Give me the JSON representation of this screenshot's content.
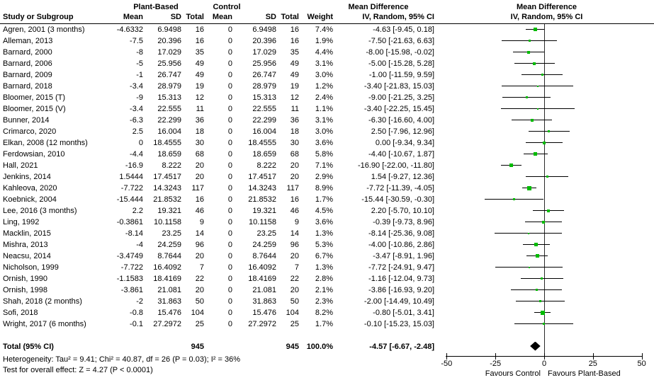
{
  "header": {
    "group_plant": "Plant-Based",
    "group_control": "Control",
    "study_col": "Study or Subgroup",
    "mean": "Mean",
    "sd": "SD",
    "total": "Total",
    "weight": "Weight",
    "md_title": "Mean Difference",
    "md_subtitle": "IV, Random, 95% CI"
  },
  "footer": {
    "heterogeneity": "Heterogeneity: Tau² = 9.41; Chi² = 40.87, df = 26 (P = 0.03); I² = 36%",
    "overall": "Test for overall effect: Z = 4.27 (P < 0.0001)"
  },
  "chart_data": {
    "type": "forest",
    "effect_label": "Mean Difference",
    "model_label": "IV, Random, 95% CI",
    "xlim": [
      -50,
      50
    ],
    "ticks": [
      -50,
      -25,
      0,
      25,
      50
    ],
    "xlabel_left": "Favours Control",
    "xlabel_right": "Favours Plant-Based",
    "marker_color": "#00bb00",
    "studies": [
      {
        "name": "Agren, 2001 (3 months)",
        "mean1": "-4.6332",
        "sd1": "6.9498",
        "n1": "16",
        "mean2": "0",
        "sd2": "6.9498",
        "n2": "16",
        "weight": "7.4%",
        "w": 7.4,
        "est": -4.63,
        "lo": -9.45,
        "hi": 0.18,
        "ci_text": "-4.63 [-9.45, 0.18]"
      },
      {
        "name": "Alleman, 2013",
        "mean1": "-7.5",
        "sd1": "20.396",
        "n1": "16",
        "mean2": "0",
        "sd2": "20.396",
        "n2": "16",
        "weight": "1.9%",
        "w": 1.9,
        "est": -7.5,
        "lo": -21.63,
        "hi": 6.63,
        "ci_text": "-7.50 [-21.63, 6.63]"
      },
      {
        "name": "Barnard, 2000",
        "mean1": "-8",
        "sd1": "17.029",
        "n1": "35",
        "mean2": "0",
        "sd2": "17.029",
        "n2": "35",
        "weight": "4.4%",
        "w": 4.4,
        "est": -8.0,
        "lo": -15.98,
        "hi": -0.02,
        "ci_text": "-8.00 [-15.98, -0.02]"
      },
      {
        "name": "Barnard, 2006",
        "mean1": "-5",
        "sd1": "25.956",
        "n1": "49",
        "mean2": "0",
        "sd2": "25.956",
        "n2": "49",
        "weight": "3.1%",
        "w": 3.1,
        "est": -5.0,
        "lo": -15.28,
        "hi": 5.28,
        "ci_text": "-5.00 [-15.28, 5.28]"
      },
      {
        "name": "Barnard, 2009",
        "mean1": "-1",
        "sd1": "26.747",
        "n1": "49",
        "mean2": "0",
        "sd2": "26.747",
        "n2": "49",
        "weight": "3.0%",
        "w": 3.0,
        "est": -1.0,
        "lo": -11.59,
        "hi": 9.59,
        "ci_text": "-1.00 [-11.59, 9.59]"
      },
      {
        "name": "Barnard, 2018",
        "mean1": "-3.4",
        "sd1": "28.979",
        "n1": "19",
        "mean2": "0",
        "sd2": "28.979",
        "n2": "19",
        "weight": "1.2%",
        "w": 1.2,
        "est": -3.4,
        "lo": -21.83,
        "hi": 15.03,
        "ci_text": "-3.40 [-21.83, 15.03]"
      },
      {
        "name": "Bloomer, 2015 (T)",
        "mean1": "-9",
        "sd1": "15.313",
        "n1": "12",
        "mean2": "0",
        "sd2": "15.313",
        "n2": "12",
        "weight": "2.4%",
        "w": 2.4,
        "est": -9.0,
        "lo": -21.25,
        "hi": 3.25,
        "ci_text": "-9.00 [-21.25, 3.25]"
      },
      {
        "name": "Bloomer, 2015 (V)",
        "mean1": "-3.4",
        "sd1": "22.555",
        "n1": "11",
        "mean2": "0",
        "sd2": "22.555",
        "n2": "11",
        "weight": "1.1%",
        "w": 1.1,
        "est": -3.4,
        "lo": -22.25,
        "hi": 15.45,
        "ci_text": "-3.40 [-22.25, 15.45]"
      },
      {
        "name": "Bunner, 2014",
        "mean1": "-6.3",
        "sd1": "22.299",
        "n1": "36",
        "mean2": "0",
        "sd2": "22.299",
        "n2": "36",
        "weight": "3.1%",
        "w": 3.1,
        "est": -6.3,
        "lo": -16.6,
        "hi": 4.0,
        "ci_text": "-6.30 [-16.60, 4.00]"
      },
      {
        "name": "Crimarco, 2020",
        "mean1": "2.5",
        "sd1": "16.004",
        "n1": "18",
        "mean2": "0",
        "sd2": "16.004",
        "n2": "18",
        "weight": "3.0%",
        "w": 3.0,
        "est": 2.5,
        "lo": -7.96,
        "hi": 12.96,
        "ci_text": "2.50 [-7.96, 12.96]"
      },
      {
        "name": "Elkan, 2008 (12 months)",
        "mean1": "0",
        "sd1": "18.4555",
        "n1": "30",
        "mean2": "0",
        "sd2": "18.4555",
        "n2": "30",
        "weight": "3.6%",
        "w": 3.6,
        "est": 0.0,
        "lo": -9.34,
        "hi": 9.34,
        "ci_text": "0.00 [-9.34, 9.34]"
      },
      {
        "name": "Ferdowsian, 2010",
        "mean1": "-4.4",
        "sd1": "18.659",
        "n1": "68",
        "mean2": "0",
        "sd2": "18.659",
        "n2": "68",
        "weight": "5.8%",
        "w": 5.8,
        "est": -4.4,
        "lo": -10.67,
        "hi": 1.87,
        "ci_text": "-4.40 [-10.67, 1.87]"
      },
      {
        "name": "Hall, 2021",
        "mean1": "-16.9",
        "sd1": "8.222",
        "n1": "20",
        "mean2": "0",
        "sd2": "8.222",
        "n2": "20",
        "weight": "7.1%",
        "w": 7.1,
        "est": -16.9,
        "lo": -22.0,
        "hi": -11.8,
        "ci_text": "-16.90 [-22.00, -11.80]"
      },
      {
        "name": "Jenkins, 2014",
        "mean1": "1.5444",
        "sd1": "17.4517",
        "n1": "20",
        "mean2": "0",
        "sd2": "17.4517",
        "n2": "20",
        "weight": "2.9%",
        "w": 2.9,
        "est": 1.54,
        "lo": -9.27,
        "hi": 12.36,
        "ci_text": "1.54 [-9.27, 12.36]"
      },
      {
        "name": "Kahleova, 2020",
        "mean1": "-7.722",
        "sd1": "14.3243",
        "n1": "117",
        "mean2": "0",
        "sd2": "14.3243",
        "n2": "117",
        "weight": "8.9%",
        "w": 8.9,
        "est": -7.72,
        "lo": -11.39,
        "hi": -4.05,
        "ci_text": "-7.72 [-11.39, -4.05]"
      },
      {
        "name": "Koebnick, 2004",
        "mean1": "-15.444",
        "sd1": "21.8532",
        "n1": "16",
        "mean2": "0",
        "sd2": "21.8532",
        "n2": "16",
        "weight": "1.7%",
        "w": 1.7,
        "est": -15.44,
        "lo": -30.59,
        "hi": -0.3,
        "ci_text": "-15.44 [-30.59, -0.30]"
      },
      {
        "name": "Lee, 2016 (3 months)",
        "mean1": "2.2",
        "sd1": "19.321",
        "n1": "46",
        "mean2": "0",
        "sd2": "19.321",
        "n2": "46",
        "weight": "4.5%",
        "w": 4.5,
        "est": 2.2,
        "lo": -5.7,
        "hi": 10.1,
        "ci_text": "2.20 [-5.70, 10.10]"
      },
      {
        "name": "Ling, 1992",
        "mean1": "-0.3861",
        "sd1": "10.1158",
        "n1": "9",
        "mean2": "0",
        "sd2": "10.1158",
        "n2": "9",
        "weight": "3.6%",
        "w": 3.6,
        "est": -0.39,
        "lo": -9.73,
        "hi": 8.96,
        "ci_text": "-0.39 [-9.73, 8.96]"
      },
      {
        "name": "Macklin, 2015",
        "mean1": "-8.14",
        "sd1": "23.25",
        "n1": "14",
        "mean2": "0",
        "sd2": "23.25",
        "n2": "14",
        "weight": "1.3%",
        "w": 1.3,
        "est": -8.14,
        "lo": -25.36,
        "hi": 9.08,
        "ci_text": "-8.14 [-25.36, 9.08]"
      },
      {
        "name": "Mishra, 2013",
        "mean1": "-4",
        "sd1": "24.259",
        "n1": "96",
        "mean2": "0",
        "sd2": "24.259",
        "n2": "96",
        "weight": "5.3%",
        "w": 5.3,
        "est": -4.0,
        "lo": -10.86,
        "hi": 2.86,
        "ci_text": "-4.00 [-10.86, 2.86]"
      },
      {
        "name": "Neacsu, 2014",
        "mean1": "-3.4749",
        "sd1": "8.7644",
        "n1": "20",
        "mean2": "0",
        "sd2": "8.7644",
        "n2": "20",
        "weight": "6.7%",
        "w": 6.7,
        "est": -3.47,
        "lo": -8.91,
        "hi": 1.96,
        "ci_text": "-3.47 [-8.91, 1.96]"
      },
      {
        "name": "Nicholson, 1999",
        "mean1": "-7.722",
        "sd1": "16.4092",
        "n1": "7",
        "mean2": "0",
        "sd2": "16.4092",
        "n2": "7",
        "weight": "1.3%",
        "w": 1.3,
        "est": -7.72,
        "lo": -24.91,
        "hi": 9.47,
        "ci_text": "-7.72 [-24.91, 9.47]"
      },
      {
        "name": "Ornish, 1990",
        "mean1": "-1.1583",
        "sd1": "18.4169",
        "n1": "22",
        "mean2": "0",
        "sd2": "18.4169",
        "n2": "22",
        "weight": "2.8%",
        "w": 2.8,
        "est": -1.16,
        "lo": -12.04,
        "hi": 9.73,
        "ci_text": "-1.16 [-12.04, 9.73]"
      },
      {
        "name": "Ornish, 1998",
        "mean1": "-3.861",
        "sd1": "21.081",
        "n1": "20",
        "mean2": "0",
        "sd2": "21.081",
        "n2": "20",
        "weight": "2.1%",
        "w": 2.1,
        "est": -3.86,
        "lo": -16.93,
        "hi": 9.2,
        "ci_text": "-3.86 [-16.93, 9.20]"
      },
      {
        "name": "Shah, 2018 (2 months)",
        "mean1": "-2",
        "sd1": "31.863",
        "n1": "50",
        "mean2": "0",
        "sd2": "31.863",
        "n2": "50",
        "weight": "2.3%",
        "w": 2.3,
        "est": -2.0,
        "lo": -14.49,
        "hi": 10.49,
        "ci_text": "-2.00 [-14.49, 10.49]"
      },
      {
        "name": "Sofi, 2018",
        "mean1": "-0.8",
        "sd1": "15.476",
        "n1": "104",
        "mean2": "0",
        "sd2": "15.476",
        "n2": "104",
        "weight": "8.2%",
        "w": 8.2,
        "est": -0.8,
        "lo": -5.01,
        "hi": 3.41,
        "ci_text": "-0.80 [-5.01, 3.41]"
      },
      {
        "name": "Wright, 2017 (6 months)",
        "mean1": "-0.1",
        "sd1": "27.2972",
        "n1": "25",
        "mean2": "0",
        "sd2": "27.2972",
        "n2": "25",
        "weight": "1.7%",
        "w": 1.7,
        "est": -0.1,
        "lo": -15.23,
        "hi": 15.03,
        "ci_text": "-0.10 [-15.23, 15.03]"
      }
    ],
    "total": {
      "label": "Total (95% CI)",
      "n1": "945",
      "n2": "945",
      "weight": "100.0%",
      "est": -4.57,
      "lo": -6.67,
      "hi": -2.48,
      "ci_text": "-4.57 [-6.67, -2.48]"
    }
  }
}
